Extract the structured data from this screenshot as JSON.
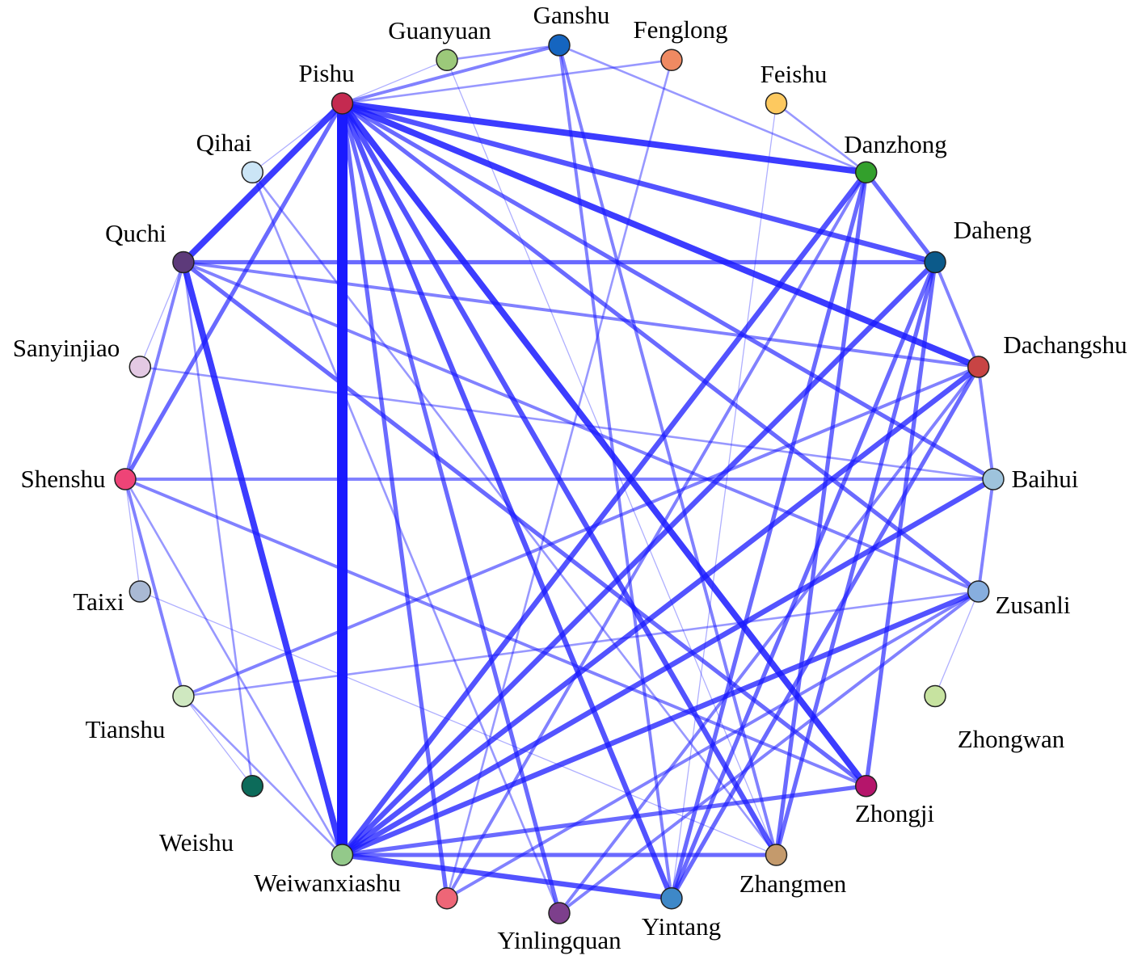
{
  "nodes": [
    {
      "label": "Ganshu",
      "color": "#1565c0"
    },
    {
      "label": "Fenglong",
      "color": "#ef8a62"
    },
    {
      "label": "Feishu",
      "color": "#fdc95f"
    },
    {
      "label": "Danzhong",
      "color": "#33a02c"
    },
    {
      "label": "Daheng",
      "color": "#0b5a8a"
    },
    {
      "label": "Dachangshu",
      "color": "#c84444"
    },
    {
      "label": "Baihui",
      "color": "#9ec3dc"
    },
    {
      "label": "Zusanli",
      "color": "#87aede"
    },
    {
      "label": "Zhongwan",
      "color": "#c7e3a0"
    },
    {
      "label": "Zhongji",
      "color": "#b5156b"
    },
    {
      "label": "Zhangmen",
      "color": "#c49a6c"
    },
    {
      "label": "Yintang",
      "color": "#3e88c8"
    },
    {
      "label": "Yinlingquan",
      "color": "#7d3f8c"
    },
    {
      "label": null,
      "color": "#ee6677"
    },
    {
      "label": "Weiwanxiashu",
      "color": "#93c98a"
    },
    {
      "label": "Weishu",
      "color": "#0c6b5a"
    },
    {
      "label": "Tianshu",
      "color": "#cfe8c0"
    },
    {
      "label": "Taixi",
      "color": "#a9b9d4"
    },
    {
      "label": "Shenshu",
      "color": "#ee4477"
    },
    {
      "label": "Sanyinjiao",
      "color": "#e3c9e3"
    },
    {
      "label": "Quchi",
      "color": "#5d3a7a"
    },
    {
      "label": "Qihai",
      "color": "#cbe5f6"
    },
    {
      "label": "Pishu",
      "color": "#c42a50"
    },
    {
      "label": "Guanyuan",
      "color": "#9cc97a"
    }
  ],
  "edges": [
    [
      22,
      14,
      10
    ],
    [
      22,
      3,
      6
    ],
    [
      22,
      5,
      6
    ],
    [
      22,
      4,
      5
    ],
    [
      22,
      9,
      6
    ],
    [
      22,
      10,
      5
    ],
    [
      22,
      11,
      5
    ],
    [
      22,
      20,
      6
    ],
    [
      22,
      6,
      4
    ],
    [
      22,
      7,
      4
    ],
    [
      22,
      12,
      4
    ],
    [
      22,
      13,
      4
    ],
    [
      22,
      18,
      4
    ],
    [
      20,
      14,
      6
    ],
    [
      20,
      4,
      4
    ],
    [
      20,
      9,
      4
    ],
    [
      14,
      3,
      5
    ],
    [
      14,
      5,
      5
    ],
    [
      14,
      4,
      5
    ],
    [
      14,
      6,
      5
    ],
    [
      14,
      7,
      5
    ],
    [
      14,
      9,
      4
    ],
    [
      14,
      10,
      4
    ],
    [
      14,
      11,
      5
    ],
    [
      11,
      3,
      4
    ],
    [
      11,
      4,
      4
    ],
    [
      11,
      5,
      4
    ],
    [
      10,
      3,
      4
    ],
    [
      10,
      4,
      4
    ],
    [
      9,
      4,
      4
    ],
    [
      3,
      4,
      4
    ],
    [
      4,
      5,
      3
    ],
    [
      5,
      6,
      3
    ],
    [
      6,
      7,
      3
    ],
    [
      18,
      6,
      3
    ],
    [
      18,
      16,
      3
    ],
    [
      16,
      5,
      3
    ],
    [
      0,
      22,
      3
    ],
    [
      0,
      11,
      3
    ],
    [
      0,
      10,
      3
    ],
    [
      0,
      3,
      2
    ],
    [
      1,
      13,
      2
    ],
    [
      18,
      9,
      3
    ],
    [
      13,
      3,
      3
    ],
    [
      13,
      7,
      3
    ],
    [
      12,
      7,
      3
    ],
    [
      12,
      5,
      3
    ],
    [
      14,
      18,
      2
    ],
    [
      16,
      7,
      2
    ],
    [
      19,
      6,
      2
    ],
    [
      20,
      5,
      3
    ],
    [
      20,
      7,
      3
    ],
    [
      21,
      10,
      2
    ],
    [
      21,
      12,
      2
    ],
    [
      18,
      20,
      3
    ],
    [
      15,
      20,
      2
    ],
    [
      17,
      10,
      1
    ],
    [
      23,
      10,
      1
    ],
    [
      2,
      3,
      2
    ],
    [
      2,
      11,
      1
    ],
    [
      23,
      0,
      2
    ],
    [
      8,
      7,
      1
    ],
    [
      15,
      16,
      1
    ],
    [
      17,
      18,
      1
    ],
    [
      19,
      20,
      1
    ],
    [
      21,
      22,
      1
    ],
    [
      23,
      22,
      1
    ],
    [
      1,
      22,
      2
    ],
    [
      16,
      14,
      2
    ]
  ]
}
